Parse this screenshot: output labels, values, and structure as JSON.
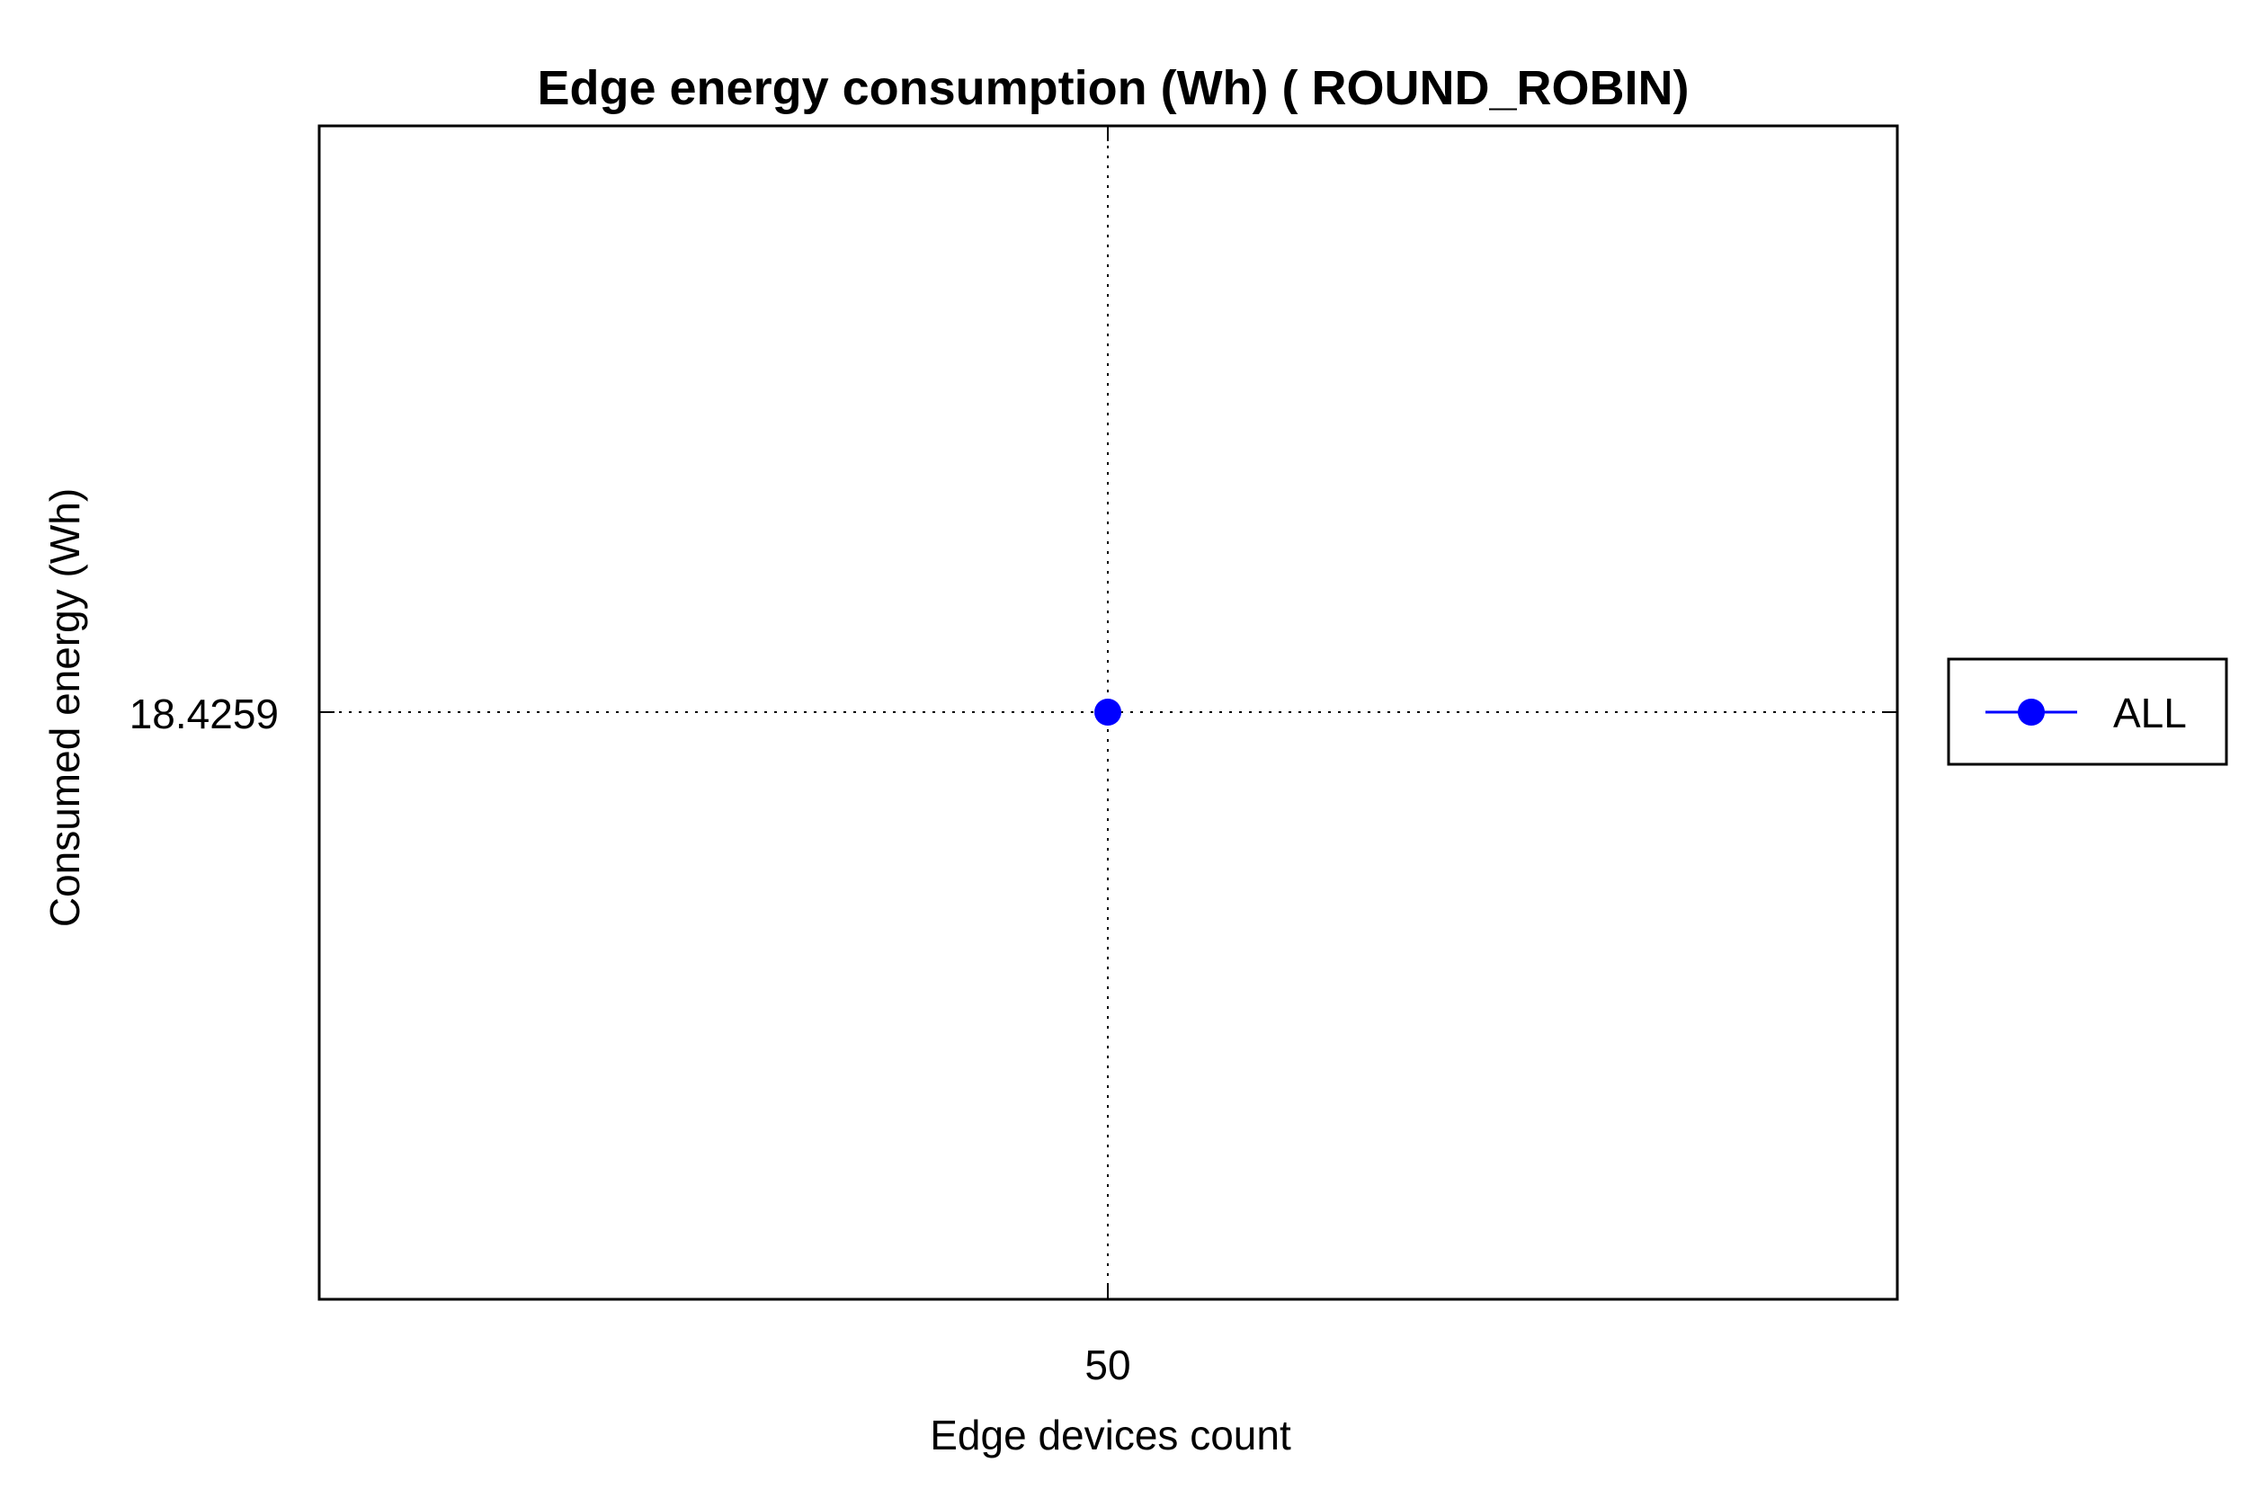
{
  "chart_data": {
    "type": "line",
    "title": "Edge energy consumption (Wh) ( ROUND_ROBIN)",
    "xlabel": "Edge devices count",
    "ylabel": "Consumed energy (Wh)",
    "x_ticks": [
      "50"
    ],
    "y_ticks": [
      "18.4259"
    ],
    "series": [
      {
        "name": "ALL",
        "color": "#0000ff",
        "marker": "circle",
        "points": [
          {
            "x": 50,
            "y": 18.4259
          }
        ]
      }
    ],
    "grid": true,
    "grid_style": "dotted",
    "legend_position": "right"
  }
}
